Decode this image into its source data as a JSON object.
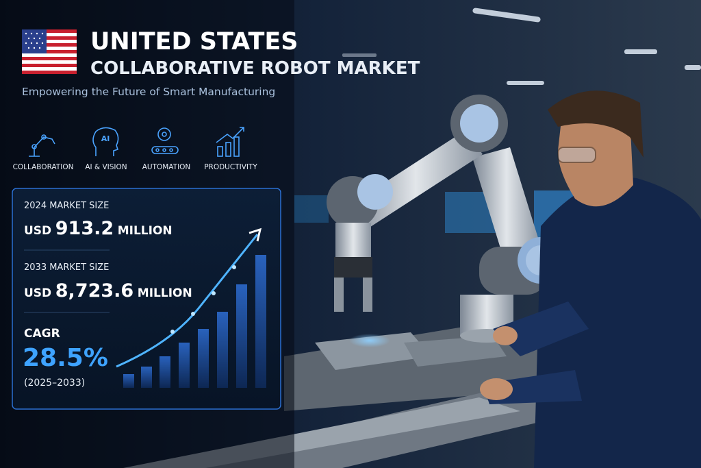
{
  "header": {
    "title": "UNITED STATES",
    "subtitle": "COLLABORATIVE ROBOT MARKET",
    "tagline": "Empowering the Future of Smart Manufacturing"
  },
  "icons": [
    {
      "label": "COLLABORATION"
    },
    {
      "label": "AI & VISION",
      "glyph": "AI"
    },
    {
      "label": "AUTOMATION"
    },
    {
      "label": "PRODUCTIVITY"
    }
  ],
  "stats": [
    {
      "label": "2024 MARKET SIZE",
      "currency": "USD",
      "value": "913.2",
      "unit": "MILLION"
    },
    {
      "label": "2033 MARKET SIZE",
      "currency": "USD",
      "value": "8,723.6",
      "unit": "MILLION"
    },
    {
      "label": "CAGR",
      "value": "28.5%",
      "period": "(2025–2033)"
    }
  ]
}
